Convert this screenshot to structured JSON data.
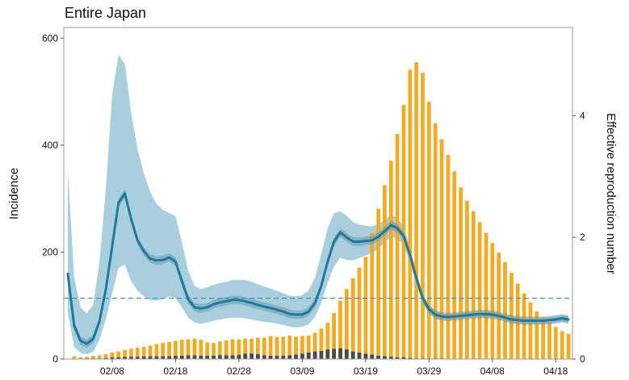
{
  "chart_data": {
    "type": "bar",
    "title": "Entire Japan",
    "xlabel": "",
    "ylabel": "Incidence",
    "y2label": "Effective reproduction number",
    "ylim": [
      0,
      620
    ],
    "y2lim": [
      0,
      5.45
    ],
    "yticks": [
      0,
      200,
      400,
      600
    ],
    "y2ticks": [
      0,
      2,
      4
    ],
    "x_day_range": [
      0,
      79
    ],
    "xticks": [
      {
        "day": 7,
        "label": "02/08"
      },
      {
        "day": 17,
        "label": "02/18"
      },
      {
        "day": 27,
        "label": "02/28"
      },
      {
        "day": 37,
        "label": "03/09"
      },
      {
        "day": 47,
        "label": "03/19"
      },
      {
        "day": 57,
        "label": "03/29"
      },
      {
        "day": 67,
        "label": "04/08"
      },
      {
        "day": 77,
        "label": "04/18"
      }
    ],
    "grid": false,
    "colors": {
      "domestic_bars": "#f2ab24",
      "imported_bars": "#4a4a4a",
      "rt_line": "#1f7aa0",
      "rt_band": "#a9cfdc",
      "rt_inner_band": "#5d8fa6",
      "threshold_line": "#4e8fc0"
    },
    "threshold": 1.0,
    "series": [
      {
        "kind": "bar_stacked_top",
        "values": [
          0,
          5,
          3,
          4,
          6,
          7,
          9,
          12,
          14,
          17,
          19,
          21,
          23,
          25,
          28,
          30,
          32,
          34,
          36,
          37,
          38,
          36,
          31,
          30,
          33,
          35,
          37,
          37,
          38,
          38,
          40,
          40,
          43,
          41,
          42,
          44,
          42,
          43,
          44,
          49,
          57,
          68,
          86,
          109,
          131,
          151,
          171,
          191,
          236,
          281,
          325,
          371,
          421,
          475,
          541,
          555,
          535,
          481,
          441,
          411,
          382,
          351,
          321,
          296,
          276,
          256,
          236,
          217,
          199,
          181,
          161,
          141,
          123,
          106,
          89,
          78,
          68,
          60,
          52,
          47
        ],
        "stack_base": [
          0,
          0,
          0,
          1,
          1,
          1,
          2,
          3,
          3,
          4,
          4,
          4,
          5,
          5,
          5,
          5,
          5,
          6,
          6,
          7,
          7,
          6,
          6,
          6,
          7,
          7,
          7,
          8,
          10,
          10,
          9,
          7,
          6,
          6,
          6,
          7,
          8,
          10,
          12,
          14,
          15,
          18,
          19,
          20,
          18,
          14,
          12,
          10,
          8,
          6,
          5,
          4,
          3,
          3,
          2,
          1,
          1,
          1,
          1,
          1,
          0,
          0,
          0,
          0,
          0,
          0,
          0,
          0,
          0,
          0,
          0,
          0,
          0,
          0,
          0,
          0,
          0,
          0,
          0,
          0
        ]
      },
      {
        "kind": "bar_stacked_base",
        "values": [
          0,
          0,
          0,
          1,
          1,
          1,
          2,
          3,
          3,
          4,
          4,
          4,
          5,
          5,
          5,
          5,
          5,
          6,
          6,
          7,
          7,
          6,
          6,
          6,
          7,
          7,
          7,
          8,
          10,
          10,
          9,
          7,
          6,
          6,
          6,
          7,
          8,
          10,
          12,
          14,
          15,
          18,
          19,
          20,
          18,
          14,
          12,
          10,
          8,
          6,
          5,
          4,
          3,
          3,
          2,
          1,
          1,
          1,
          1,
          1,
          0,
          0,
          0,
          0,
          0,
          0,
          0,
          0,
          0,
          0,
          0,
          0,
          0,
          0,
          0,
          0,
          0,
          0,
          0,
          0
        ]
      },
      {
        "kind": "rt_line",
        "x": [
          0,
          1,
          2,
          3,
          4,
          5,
          6,
          7,
          8,
          9,
          10,
          11,
          12,
          13,
          14,
          15,
          16,
          17,
          18,
          19,
          20,
          21,
          22,
          23,
          24,
          25,
          26,
          27,
          28,
          29,
          30,
          31,
          32,
          33,
          34,
          35,
          36,
          37,
          38,
          39,
          40,
          41,
          42,
          43,
          44,
          45,
          46,
          47,
          48,
          49,
          50,
          51,
          52,
          53,
          54,
          55,
          56,
          57,
          58,
          59,
          60,
          61,
          62,
          63,
          64,
          65,
          65.5,
          67,
          68,
          69,
          70,
          71,
          72,
          73,
          74,
          75,
          76,
          77,
          78,
          79
        ],
        "values": [
          1.4,
          0.55,
          0.3,
          0.25,
          0.33,
          0.62,
          1.15,
          1.85,
          2.57,
          2.72,
          2.3,
          1.95,
          1.77,
          1.65,
          1.62,
          1.63,
          1.67,
          1.6,
          1.28,
          0.98,
          0.85,
          0.83,
          0.85,
          0.9,
          0.93,
          0.95,
          0.97,
          0.97,
          0.95,
          0.92,
          0.89,
          0.86,
          0.84,
          0.81,
          0.78,
          0.74,
          0.73,
          0.73,
          0.78,
          0.92,
          1.2,
          1.6,
          1.93,
          2.08,
          2.0,
          1.93,
          1.93,
          1.94,
          1.95,
          2.01,
          2.1,
          2.2,
          2.15,
          2.02,
          1.71,
          1.33,
          1.0,
          0.82,
          0.73,
          0.7,
          0.69,
          0.7,
          0.71,
          0.72,
          0.73,
          0.74,
          0.74,
          0.73,
          0.71,
          0.68,
          0.65,
          0.64,
          0.63,
          0.63,
          0.63,
          0.63,
          0.64,
          0.65,
          0.67,
          0.65
        ]
      },
      {
        "kind": "rt_band",
        "x": [
          0,
          1,
          2,
          3,
          4,
          5,
          6,
          7,
          8,
          9,
          10,
          11,
          12,
          13,
          14,
          15,
          16,
          17,
          18,
          19,
          20,
          21,
          22,
          23,
          24,
          25,
          26,
          27,
          28,
          29,
          30,
          31,
          32,
          33,
          34,
          35,
          36,
          37,
          38,
          39,
          40,
          41,
          42,
          43,
          44,
          45,
          46,
          47,
          48,
          49,
          50,
          51,
          52,
          53,
          54,
          55,
          56,
          57,
          58,
          59,
          60,
          61,
          62,
          63,
          64,
          65,
          65.5,
          67,
          68,
          69,
          70,
          71,
          72,
          73,
          74,
          75,
          76,
          77,
          78,
          79
        ],
        "lower": [
          0.75,
          0.2,
          0.1,
          0.08,
          0.12,
          0.32,
          0.65,
          1.08,
          1.5,
          1.55,
          1.28,
          1.12,
          1.03,
          0.97,
          0.96,
          0.98,
          1.03,
          1.0,
          0.85,
          0.68,
          0.6,
          0.58,
          0.6,
          0.63,
          0.65,
          0.67,
          0.68,
          0.68,
          0.67,
          0.65,
          0.63,
          0.61,
          0.6,
          0.58,
          0.56,
          0.53,
          0.52,
          0.53,
          0.57,
          0.69,
          0.92,
          1.25,
          1.52,
          1.67,
          1.63,
          1.62,
          1.66,
          1.7,
          1.74,
          1.81,
          1.92,
          2.02,
          1.98,
          1.87,
          1.58,
          1.23,
          0.92,
          0.75,
          0.67,
          0.65,
          0.64,
          0.65,
          0.66,
          0.67,
          0.68,
          0.69,
          0.69,
          0.68,
          0.66,
          0.63,
          0.6,
          0.59,
          0.58,
          0.58,
          0.58,
          0.58,
          0.59,
          0.6,
          0.62,
          0.6
        ],
        "upper": [
          3.1,
          1.35,
          0.85,
          0.75,
          0.9,
          1.6,
          2.8,
          4.35,
          5.0,
          4.85,
          4.05,
          3.45,
          3.05,
          2.75,
          2.55,
          2.45,
          2.4,
          2.35,
          1.92,
          1.45,
          1.2,
          1.15,
          1.18,
          1.22,
          1.25,
          1.27,
          1.3,
          1.3,
          1.3,
          1.27,
          1.23,
          1.19,
          1.16,
          1.12,
          1.08,
          1.04,
          1.03,
          1.05,
          1.13,
          1.34,
          1.72,
          2.15,
          2.4,
          2.43,
          2.36,
          2.25,
          2.21,
          2.19,
          2.18,
          2.22,
          2.29,
          2.37,
          2.32,
          2.18,
          1.84,
          1.43,
          1.08,
          0.89,
          0.79,
          0.75,
          0.74,
          0.75,
          0.76,
          0.77,
          0.78,
          0.79,
          0.79,
          0.78,
          0.76,
          0.73,
          0.7,
          0.69,
          0.68,
          0.68,
          0.68,
          0.68,
          0.69,
          0.7,
          0.72,
          0.7
        ]
      }
    ]
  }
}
